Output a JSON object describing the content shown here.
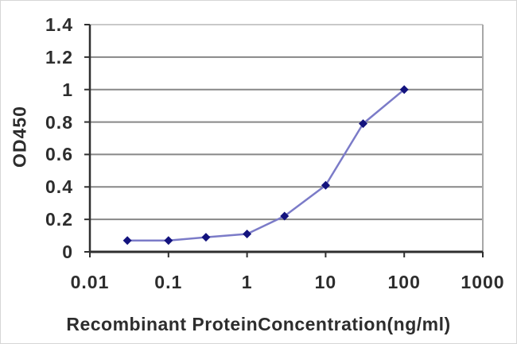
{
  "chart_data": {
    "type": "line",
    "title": "",
    "xlabel": "Recombinant ProteinConcentration(ng/ml)",
    "ylabel": "OD450",
    "x_scale": "log",
    "xlim": [
      0.01,
      1000
    ],
    "ylim": [
      0,
      1.4
    ],
    "x": [
      0.03,
      0.1,
      0.3,
      1,
      3,
      10,
      30,
      100
    ],
    "y": [
      0.07,
      0.07,
      0.09,
      0.11,
      0.22,
      0.41,
      0.79,
      1.0
    ],
    "x_ticks": [
      0.01,
      0.1,
      1,
      10,
      100,
      1000
    ],
    "x_tick_labels": [
      "0.01",
      "0.1",
      "1",
      "10",
      "100",
      "1000"
    ],
    "y_ticks": [
      0,
      0.2,
      0.4,
      0.6,
      0.8,
      1.0,
      1.2,
      1.4
    ],
    "y_tick_labels": [
      "0",
      "0.2",
      "0.4",
      "0.6",
      "0.8",
      "1",
      "1.2",
      "1.4"
    ],
    "grid": "horizontal",
    "legend": "none",
    "marker": "diamond",
    "colors": {
      "line": "#7b7bc8",
      "marker": "#13137e",
      "grid": "#878787",
      "axis": "#2f2f2f",
      "border_right": "#a8a8a8",
      "border_top": "#c9c9c9",
      "text": "#2d2d2d",
      "background": "#ffffff"
    }
  }
}
